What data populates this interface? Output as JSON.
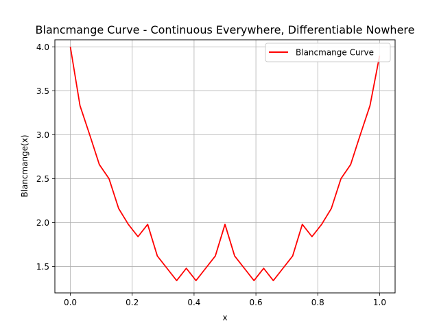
{
  "chart_data": {
    "type": "line",
    "title": "Blancmange Curve - Continuous Everywhere, Differentiable Nowhere",
    "xlabel": "x",
    "ylabel": "Blancmange(x)",
    "xlim": [
      -0.05,
      1.05
    ],
    "ylim": [
      1.2,
      4.08
    ],
    "x_ticks": [
      0.0,
      0.2,
      0.4,
      0.6,
      0.8,
      1.0
    ],
    "x_tick_labels": [
      "0.0",
      "0.2",
      "0.4",
      "0.6",
      "0.8",
      "1.0"
    ],
    "y_ticks": [
      1.5,
      2.0,
      2.5,
      3.0,
      3.5,
      4.0
    ],
    "y_tick_labels": [
      "1.5",
      "2.0",
      "2.5",
      "3.0",
      "3.5",
      "4.0"
    ],
    "grid": true,
    "legend_position": "top-right",
    "series": [
      {
        "name": "Blancmange Curve",
        "color": "#ff0000",
        "x": [
          0.0,
          0.03125,
          0.0625,
          0.09375,
          0.125,
          0.15625,
          0.1875,
          0.21875,
          0.25,
          0.28125,
          0.3125,
          0.34375,
          0.375,
          0.40625,
          0.4375,
          0.46875,
          0.5,
          0.53125,
          0.5625,
          0.59375,
          0.625,
          0.65625,
          0.6875,
          0.71875,
          0.75,
          0.78125,
          0.8125,
          0.84375,
          0.875,
          0.90625,
          0.9375,
          0.96875,
          1.0
        ],
        "values": [
          4.0,
          3.33,
          3.0,
          2.66,
          2.5,
          2.16,
          1.98,
          1.84,
          1.98,
          1.62,
          1.48,
          1.34,
          1.48,
          1.34,
          1.48,
          1.62,
          1.98,
          1.62,
          1.48,
          1.34,
          1.48,
          1.34,
          1.48,
          1.62,
          1.98,
          1.84,
          1.98,
          2.16,
          2.5,
          2.66,
          3.0,
          3.33,
          3.9
        ]
      }
    ]
  }
}
